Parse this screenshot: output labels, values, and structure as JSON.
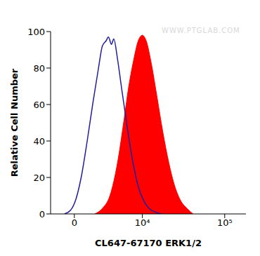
{
  "chart_data": {
    "type": "line",
    "x_label": "CL647-67170 ERK1/2",
    "y_label": "Relative Cell Number",
    "annotations": [
      "WWW.PTGLAB.COM"
    ],
    "log": "x",
    "xlim": [
      -2200,
      180000
    ],
    "xticks": [
      0,
      {
        "value": 10000,
        "label": "10⁴"
      },
      {
        "value": 100000,
        "label": "10⁵"
      }
    ],
    "ylim": [
      0,
      100
    ],
    "yticks": [
      0,
      20,
      40,
      60,
      80,
      100
    ],
    "grid": false,
    "series": [
      {
        "type": "line",
        "color": "#1f1f9e",
        "x": [
          -860,
          -330,
          130,
          590,
          1130,
          1700,
          2240,
          2660,
          3110,
          3390,
          3790,
          4110,
          4670,
          5290,
          6240,
          7450,
          8870,
          10470,
          12150,
          14420,
          17130
        ],
        "values": [
          0,
          2,
          8,
          20,
          40,
          62,
          80,
          92,
          95,
          97,
          93,
          96,
          85,
          70,
          50,
          30,
          15,
          7,
          3,
          1,
          0
        ]
      },
      {
        "type": "area",
        "color": "#ff0000",
        "x": [
          1850,
          2660,
          3590,
          4670,
          5690,
          6680,
          7790,
          8870,
          10000,
          11150,
          12990,
          15080,
          17880,
          21180,
          25080,
          29690,
          35110,
          41550
        ],
        "values": [
          0,
          3,
          10,
          28,
          50,
          70,
          85,
          95,
          98,
          95,
          82,
          65,
          45,
          28,
          15,
          7,
          3,
          0
        ]
      }
    ]
  }
}
